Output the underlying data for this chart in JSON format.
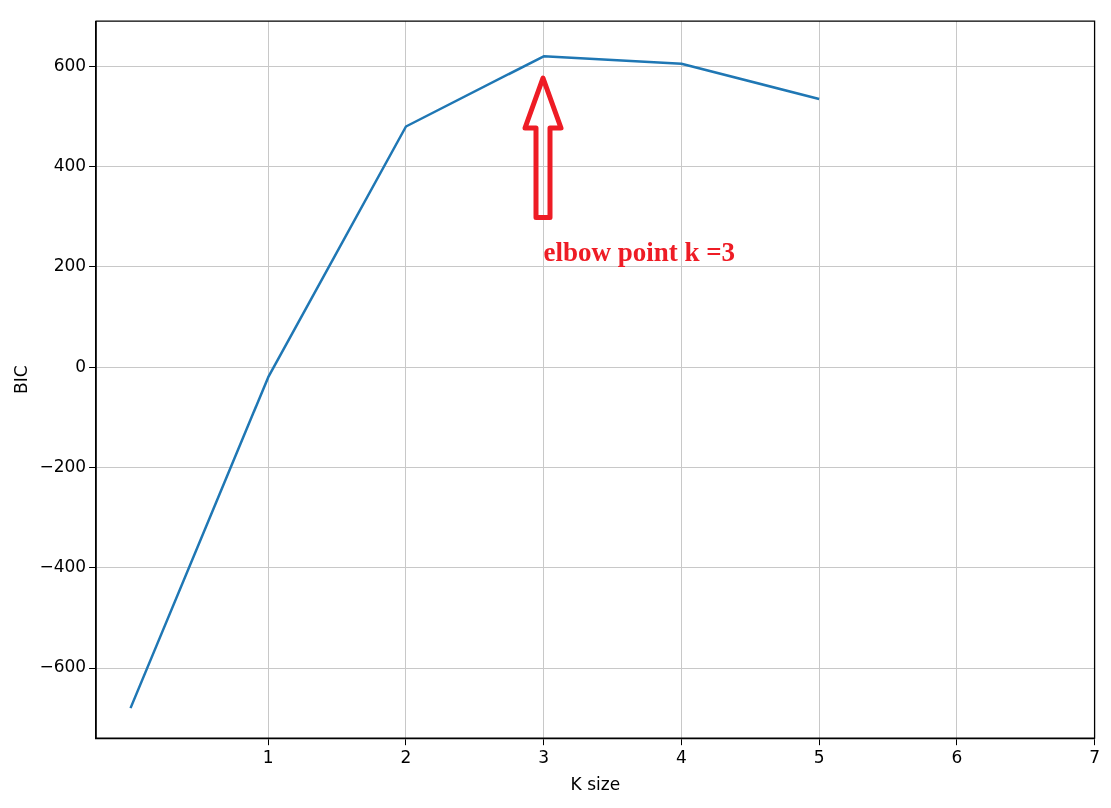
{
  "chart_data": {
    "type": "line",
    "xlabel": "K size",
    "ylabel": "BIC",
    "x": [
      0,
      1,
      2,
      3,
      4,
      5
    ],
    "values": [
      -680,
      -20,
      480,
      620,
      605,
      535
    ],
    "color": "#1f77b4",
    "xlim": [
      -0.25,
      7
    ],
    "xticks": [
      1,
      2,
      3,
      4,
      5,
      6,
      7
    ],
    "ylim": [
      -740,
      690
    ],
    "yticks": [
      {
        "value": -600,
        "label": "−600"
      },
      {
        "value": -400,
        "label": "−400"
      },
      {
        "value": -200,
        "label": "−200"
      },
      0,
      200,
      400,
      600
    ],
    "grid": true,
    "marker": "none",
    "line_style": "solid",
    "annotations": [
      "elbow point k =3"
    ]
  }
}
